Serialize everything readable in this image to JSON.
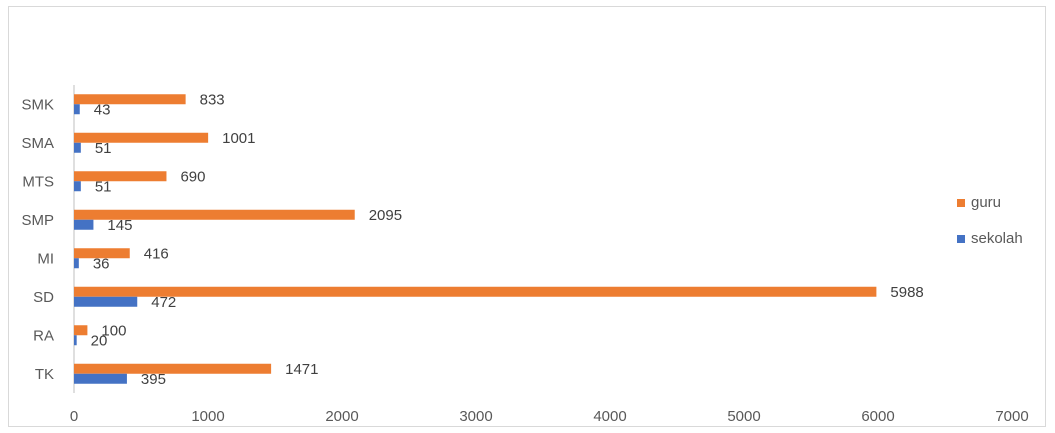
{
  "chart_data": {
    "type": "bar",
    "orientation": "horizontal",
    "categories": [
      "TK",
      "RA",
      "SD",
      "MI",
      "SMP",
      "MTS",
      "SMA",
      "SMK"
    ],
    "series": [
      {
        "name": "guru",
        "color": "#ED7D31",
        "values": [
          1471,
          100,
          5988,
          416,
          2095,
          690,
          1001,
          833
        ]
      },
      {
        "name": "sekolah",
        "color": "#4472C4",
        "values": [
          395,
          20,
          472,
          36,
          145,
          51,
          51,
          43
        ]
      }
    ],
    "xlim": [
      0,
      7000
    ],
    "xticks": [
      0,
      1000,
      2000,
      3000,
      4000,
      5000,
      6000,
      7000
    ],
    "title": "",
    "xlabel": "",
    "ylabel": "",
    "grid": false,
    "legend_position": "right"
  }
}
